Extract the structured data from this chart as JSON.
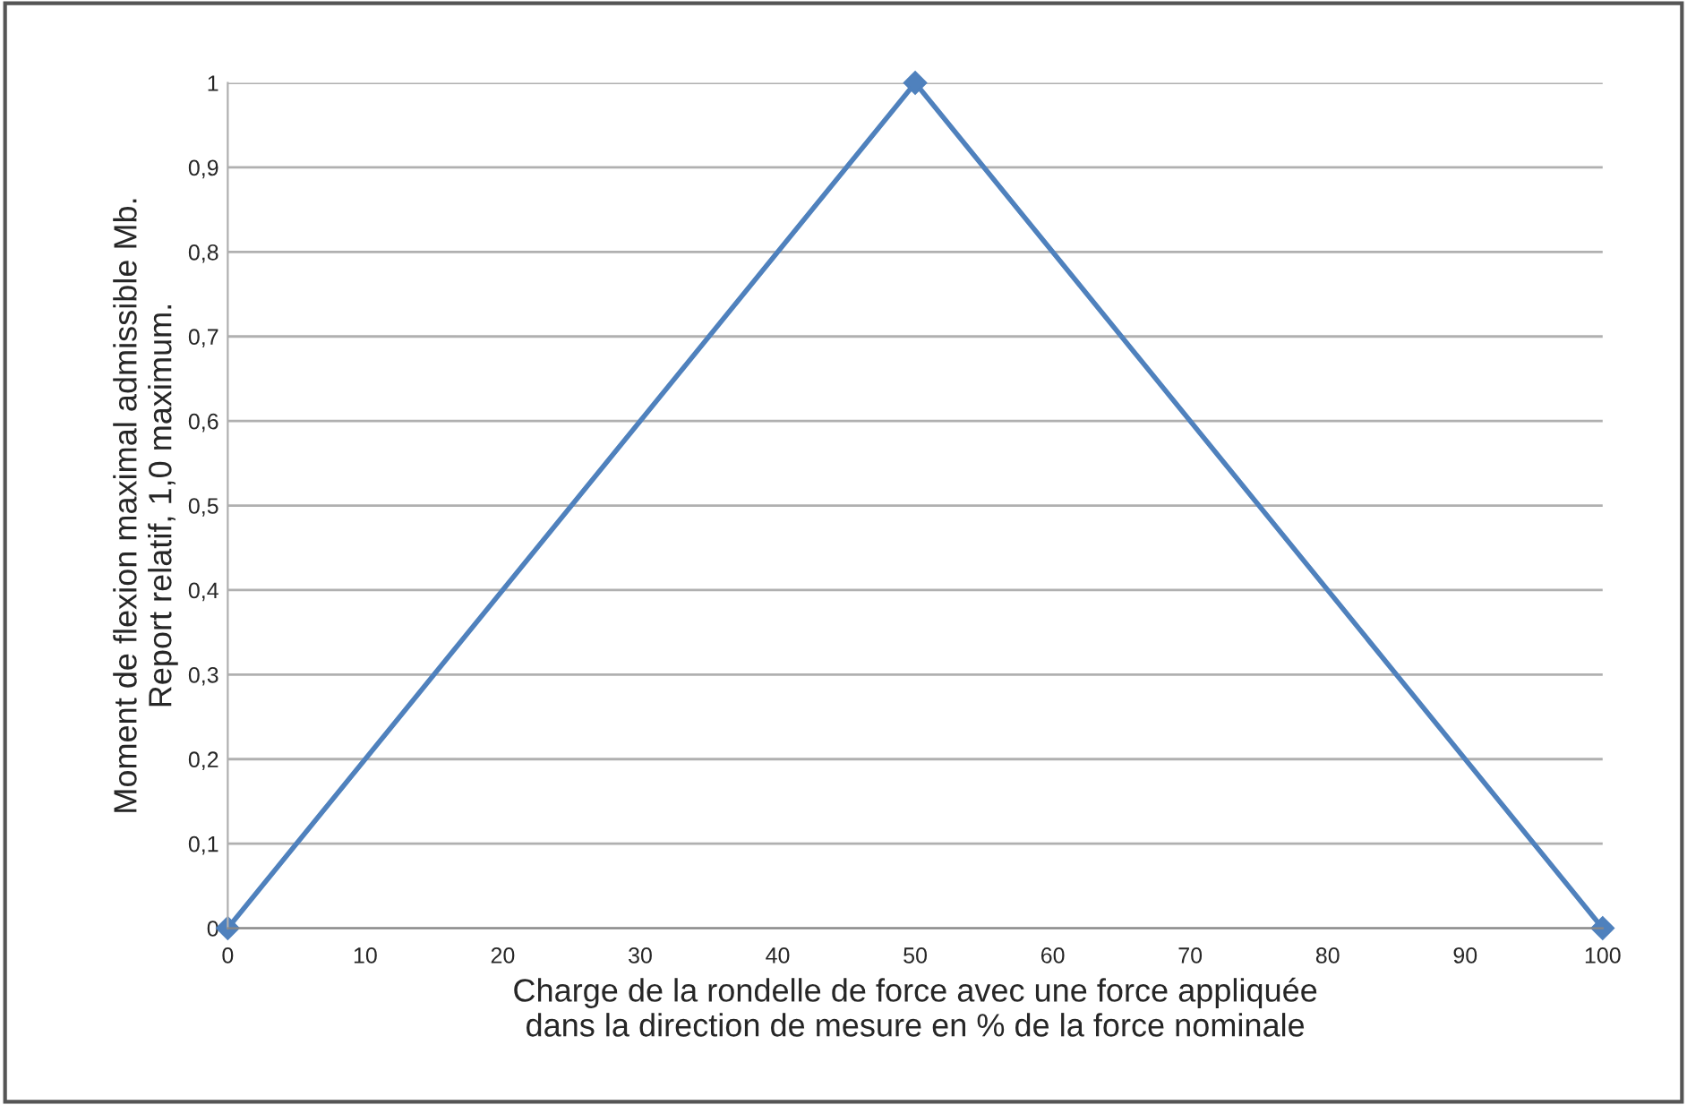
{
  "chart_data": {
    "type": "line",
    "xlabel": "Charge de la rondelle de force avec une force appliquée\ndans la direction de mesure en % de la force nominale",
    "ylabel": "Moment de flexion maximal admissible Mb.\nReport relatif, 1,0 maximum.",
    "x": [
      0,
      50,
      100
    ],
    "series": [
      {
        "color": "#4f81bd",
        "values": [
          0,
          1,
          0
        ]
      }
    ],
    "xlim": [
      0,
      100
    ],
    "xticks": [
      0,
      10,
      20,
      30,
      40,
      50,
      60,
      70,
      80,
      90,
      100
    ],
    "ylim": [
      0,
      1
    ],
    "yticks": [
      0,
      {
        "value": 0.1,
        "label": "0,1"
      },
      {
        "value": 0.2,
        "label": "0,2"
      },
      {
        "value": 0.3,
        "label": "0,3"
      },
      {
        "value": 0.4,
        "label": "0,4"
      },
      {
        "value": 0.5,
        "label": "0,5"
      },
      {
        "value": 0.6,
        "label": "0,6"
      },
      {
        "value": 0.7,
        "label": "0,7"
      },
      {
        "value": 0.8,
        "label": "0,8"
      },
      {
        "value": 0.9,
        "label": "0,9"
      },
      1
    ],
    "grid": "y",
    "marker": "diamond",
    "line_style": "solid",
    "legend": false
  }
}
